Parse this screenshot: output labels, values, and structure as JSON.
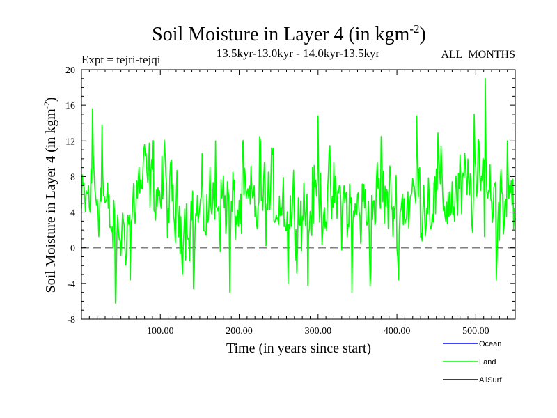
{
  "chart_data": {
    "type": "line",
    "title": "Soil Moisture in Layer 4 (in kgm",
    "title_sup": "-2",
    "title_end": ")",
    "subtitle": "13.5kyr-13.0kyr - 14.0kyr-13.5kyr",
    "expt_label": "Expt = tejri-tejqi",
    "months_label": "ALL_MONTHS",
    "xlabel": "Time (in years since start)",
    "ylabel": "Soil Moisture in Layer 4 (in kgm",
    "ylabel_sup": "-2",
    "ylabel_end": ")",
    "xlim": [
      0,
      550
    ],
    "ylim": [
      -8,
      20
    ],
    "x_ticks": [
      100,
      200,
      300,
      400,
      500
    ],
    "x_tick_labels": [
      "100.00",
      "200.00",
      "300.00",
      "400.00",
      "500.00"
    ],
    "y_ticks": [
      -8,
      -4,
      0,
      4,
      8,
      12,
      16,
      20
    ],
    "y_tick_labels": [
      "-8",
      "-4",
      "0",
      "4",
      "8",
      "12",
      "16",
      "20"
    ],
    "zero_line": 0,
    "series": [
      {
        "name": "Ocean",
        "color": "#0000ff",
        "values": []
      },
      {
        "name": "Land",
        "color": "#00ff00",
        "x": [
          0,
          10,
          20,
          30,
          40,
          50,
          60,
          70,
          80,
          90,
          100,
          110,
          120,
          130,
          140,
          150,
          160,
          170,
          180,
          190,
          200,
          210,
          220,
          230,
          240,
          250,
          260,
          270,
          280,
          290,
          300,
          310,
          320,
          330,
          340,
          350,
          360,
          370,
          380,
          390,
          400,
          410,
          420,
          430,
          440,
          450,
          460,
          470,
          480,
          490,
          500,
          510,
          520,
          530,
          540,
          550
        ],
        "mean": [
          4.0,
          6.0,
          6.5,
          4.5,
          1.5,
          1.5,
          3.5,
          6.5,
          7.0,
          7.5,
          6.0,
          5.0,
          3.5,
          3.5,
          4.0,
          3.5,
          4.5,
          5.0,
          5.5,
          4.5,
          4.0,
          4.0,
          4.5,
          5.0,
          5.5,
          6.0,
          5.0,
          4.5,
          4.5,
          5.0,
          5.5,
          5.5,
          5.0,
          5.0,
          4.5,
          4.0,
          4.5,
          5.0,
          5.5,
          5.0,
          4.5,
          5.0,
          5.5,
          5.5,
          6.0,
          5.5,
          5.5,
          5.5,
          6.0,
          6.5,
          6.0,
          7.0,
          6.0,
          6.0,
          6.5,
          6.5
        ],
        "amplitude": [
          3.5,
          4.0,
          3.5,
          3.0,
          3.0,
          3.0,
          3.5,
          3.5,
          3.5,
          3.5,
          3.5,
          3.5,
          3.5,
          3.5,
          3.5,
          3.5,
          3.5,
          3.5,
          3.5,
          3.5,
          3.5,
          3.5,
          3.5,
          3.5,
          3.5,
          3.5,
          3.5,
          3.5,
          3.5,
          3.5,
          3.5,
          3.5,
          3.5,
          3.5,
          3.5,
          3.5,
          3.5,
          3.5,
          3.5,
          3.5,
          3.5,
          3.5,
          3.5,
          3.5,
          3.5,
          3.5,
          3.5,
          3.5,
          3.5,
          3.5,
          3.5,
          4.0,
          3.5,
          3.5,
          3.5,
          3.5
        ],
        "extremes": [
          [
            14,
            15.6
          ],
          [
            26,
            13.8
          ],
          [
            43,
            -6.2
          ],
          [
            62,
            -3.6
          ],
          [
            80,
            11.6
          ],
          [
            105,
            12.1
          ],
          [
            142,
            -4.6
          ],
          [
            170,
            12.0
          ],
          [
            188,
            -5.0
          ],
          [
            204,
            11.4
          ],
          [
            226,
            12.5
          ],
          [
            262,
            -4.0
          ],
          [
            287,
            -4.2
          ],
          [
            300,
            14.8
          ],
          [
            343,
            -5.0
          ],
          [
            366,
            -4.3
          ],
          [
            380,
            12.5
          ],
          [
            402,
            -3.6
          ],
          [
            425,
            14.8
          ],
          [
            452,
            12.9
          ],
          [
            498,
            15.0
          ],
          [
            512,
            19.0
          ],
          [
            526,
            -3.6
          ],
          [
            540,
            12.0
          ]
        ]
      },
      {
        "name": "AllSurf",
        "color": "#000000",
        "values": []
      }
    ],
    "legend_position": "bottom-right"
  }
}
